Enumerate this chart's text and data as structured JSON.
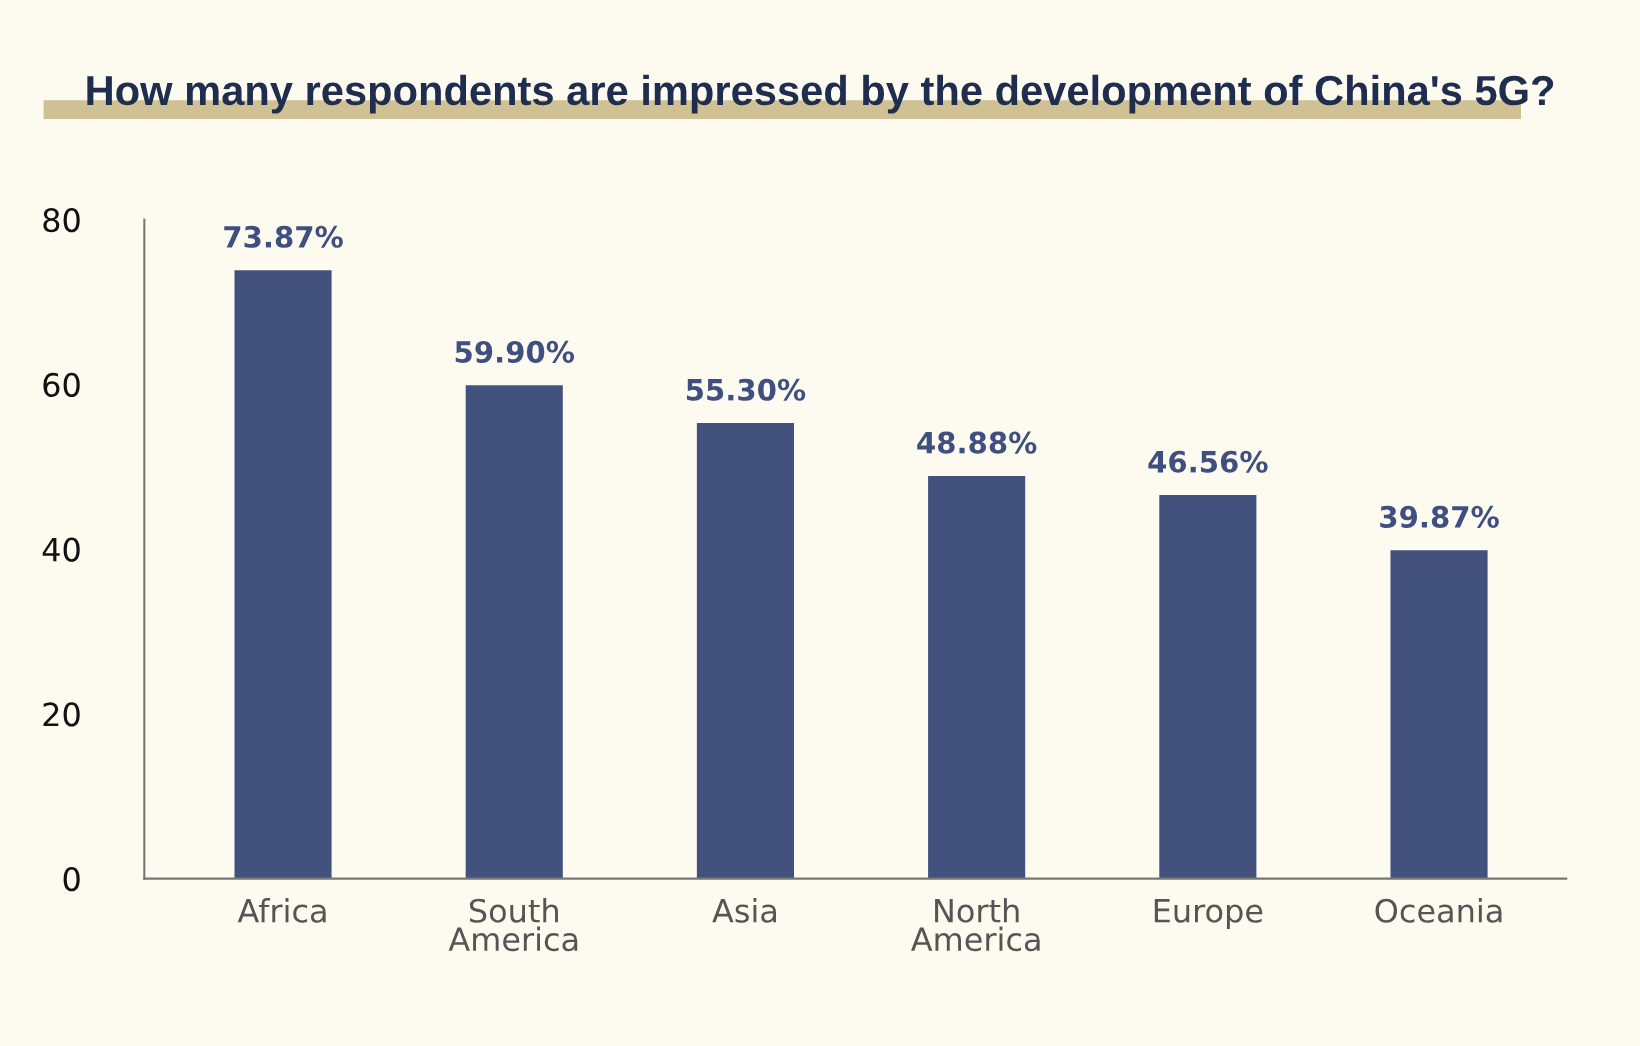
{
  "chart_data": {
    "type": "bar",
    "title": "How many respondents are impressed by the development of China's 5G?",
    "categories": [
      "Africa",
      "South\nAmerica",
      "Asia",
      "North\nAmerica",
      "Europe",
      "Oceania"
    ],
    "values": [
      73.87,
      59.9,
      55.3,
      48.88,
      46.56,
      39.87
    ],
    "value_labels": [
      "73.87%",
      "59.90%",
      "55.30%",
      "48.88%",
      "46.56%",
      "39.87%"
    ],
    "color": "#43527d",
    "ylim": [
      0,
      80
    ],
    "yticks": [
      0,
      20,
      40,
      60,
      80
    ],
    "grid": false,
    "legend": false
  }
}
